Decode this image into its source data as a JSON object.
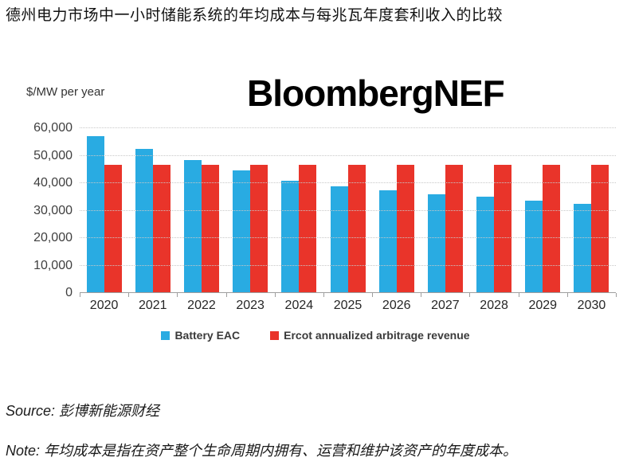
{
  "page": {
    "title": "德州电力市场中一小时储能系统的年均成本与每兆瓦年度套利收入的比较",
    "source": "Source: 彭博新能源财经",
    "note": "Note: 年均成本是指在资产整个生命周期内拥有、运营和维护该资产的年度成本。"
  },
  "chart": {
    "watermark": "BloombergNEF",
    "axis_unit": "$/MW per year",
    "colors": {
      "battery": "#29ABE2",
      "ercot": "#E9342A",
      "gridline": "#c8c8c8",
      "axis_line": "#9e9e9e"
    }
  },
  "chart_data": {
    "type": "bar",
    "title": "德州电力市场中一小时储能系统的年均成本与每兆瓦年度套利收入的比较",
    "ylabel": "$/MW per year",
    "xlabel": "",
    "ylim": [
      0,
      60000
    ],
    "yticks": [
      0,
      10000,
      20000,
      30000,
      40000,
      50000,
      60000
    ],
    "grid": "horizontal-dotted",
    "legend_position": "bottom",
    "categories": [
      "2020",
      "2021",
      "2022",
      "2023",
      "2024",
      "2025",
      "2026",
      "2027",
      "2028",
      "2029",
      "2030"
    ],
    "series": [
      {
        "name": "Battery EAC",
        "color": "#29ABE2",
        "values": [
          57000,
          52500,
          48300,
          44500,
          41000,
          38800,
          37400,
          36000,
          35000,
          33700,
          32600
        ]
      },
      {
        "name": "Ercot annualized arbitrage revenue",
        "color": "#E9342A",
        "values": [
          46700,
          46700,
          46700,
          46700,
          46700,
          46700,
          46700,
          46700,
          46700,
          46700,
          46700
        ]
      }
    ]
  }
}
